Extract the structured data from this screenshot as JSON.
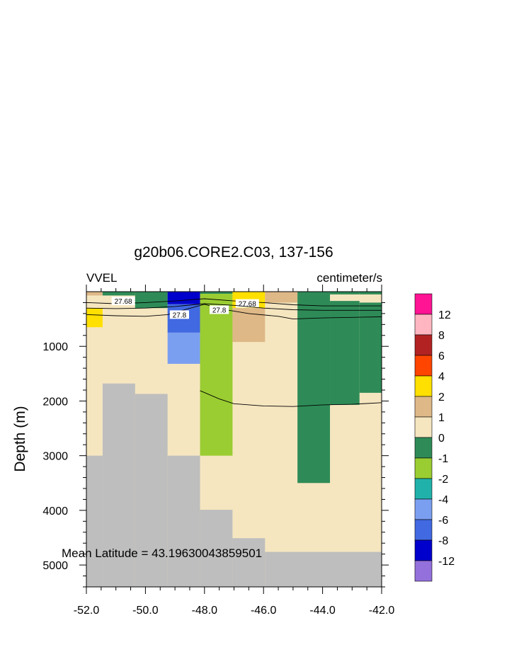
{
  "chart_data": {
    "type": "heatmap",
    "title": "g20b06.CORE2.C03, 137-156",
    "left_label": "VVEL",
    "right_label": "centimeter/s",
    "ylabel": "Depth (m)",
    "xlabel": "",
    "annotation": "Mean Latitude = 43.19630043859501",
    "xlim": [
      -52.0,
      -42.0
    ],
    "ylim": [
      5400,
      0
    ],
    "y_inverted": true,
    "x_ticks": [
      -52.0,
      -50.0,
      -48.0,
      -46.0,
      -44.0,
      -42.0
    ],
    "x_tick_labels": [
      "-52.0",
      "-50.0",
      "-48.0",
      "-46.0",
      "-44.0",
      "-42.0"
    ],
    "y_ticks": [
      1000,
      2000,
      3000,
      4000,
      5000
    ],
    "y_tick_labels": [
      "1000",
      "2000",
      "3000",
      "4000",
      "5000"
    ],
    "colorbar": {
      "labels": [
        "12",
        "8",
        "6",
        "4",
        "2",
        "1",
        "0",
        "-1",
        "-2",
        "-4",
        "-6",
        "-8",
        "-12"
      ],
      "colors": [
        "#ff1493",
        "#ffb6c1",
        "#b22222",
        "#ff4500",
        "#ffe000",
        "#deb887",
        "#f5e6c0",
        "#2e8b57",
        "#9acd32",
        "#20b2aa",
        "#7b9ff0",
        "#4169e1",
        "#0000cd",
        "#9370db"
      ]
    },
    "fill": {
      "ocean": "#f5e6c0",
      "land": "#bebebe"
    },
    "bathymetry": [
      {
        "x0": -52.0,
        "x1": -51.45,
        "depth": 3000
      },
      {
        "x0": -51.45,
        "x1": -50.35,
        "depth": 1680
      },
      {
        "x0": -50.35,
        "x1": -49.25,
        "depth": 1870
      },
      {
        "x0": -49.25,
        "x1": -48.15,
        "depth": 3000
      },
      {
        "x0": -48.15,
        "x1": -47.05,
        "depth": 3990
      },
      {
        "x0": -47.05,
        "x1": -45.95,
        "depth": 4510
      },
      {
        "x0": -45.95,
        "x1": -42.0,
        "depth": 4760
      }
    ],
    "cells": [
      {
        "x0": -52.0,
        "x1": -51.45,
        "d0": 0,
        "d1": 70,
        "value": 1
      },
      {
        "x0": -52.0,
        "x1": -51.45,
        "d0": 300,
        "d1": 650,
        "value": 2
      },
      {
        "x0": -51.45,
        "x1": -50.35,
        "d0": 0,
        "d1": 70,
        "value": -0.5
      },
      {
        "x0": -50.35,
        "x1": -49.25,
        "d0": 0,
        "d1": 300,
        "value": -0.5
      },
      {
        "x0": -49.25,
        "x1": -48.15,
        "d0": 0,
        "d1": 230,
        "value": -10
      },
      {
        "x0": -49.25,
        "x1": -48.15,
        "d0": 230,
        "d1": 750,
        "value": -7
      },
      {
        "x0": -49.25,
        "x1": -48.15,
        "d0": 750,
        "d1": 1320,
        "value": -5
      },
      {
        "x0": -48.15,
        "x1": -47.05,
        "d0": 0,
        "d1": 40,
        "value": -0.5
      },
      {
        "x0": -48.15,
        "x1": -47.05,
        "d0": 40,
        "d1": 3000,
        "value": -1.5
      },
      {
        "x0": -47.05,
        "x1": -45.95,
        "d0": 0,
        "d1": 300,
        "value": 3
      },
      {
        "x0": -47.05,
        "x1": -45.95,
        "d0": 300,
        "d1": 920,
        "value": 1.5
      },
      {
        "x0": -45.95,
        "x1": -44.85,
        "d0": 0,
        "d1": 200,
        "value": 1.5
      },
      {
        "x0": -44.85,
        "x1": -43.75,
        "d0": 0,
        "d1": 3500,
        "value": -0.5
      },
      {
        "x0": -43.75,
        "x1": -42.75,
        "d0": 0,
        "d1": 50,
        "value": -0.5
      },
      {
        "x0": -43.75,
        "x1": -42.75,
        "d0": 170,
        "d1": 2070,
        "value": -0.5
      },
      {
        "x0": -42.75,
        "x1": -42.0,
        "d0": 0,
        "d1": 50,
        "value": -0.5
      },
      {
        "x0": -42.75,
        "x1": -42.0,
        "d0": 200,
        "d1": 1850,
        "value": -0.5
      }
    ],
    "contours": [
      {
        "label": "27.68",
        "points": [
          [
            -52.0,
            200
          ],
          [
            -51.0,
            220
          ],
          [
            -50.0,
            200
          ],
          [
            -49.0,
            170
          ],
          [
            -48.0,
            130
          ],
          [
            -47.0,
            170
          ],
          [
            -46.0,
            200
          ],
          [
            -45.0,
            240
          ],
          [
            -44.0,
            260
          ],
          [
            -43.0,
            260
          ],
          [
            -42.0,
            260
          ]
        ],
        "label_positions": [
          [
            -50.75,
            170
          ],
          [
            -46.55,
            215
          ]
        ]
      },
      {
        "label": "",
        "points": [
          [
            -52.0,
            300
          ],
          [
            -51.0,
            310
          ],
          [
            -50.0,
            300
          ],
          [
            -49.0,
            270
          ],
          [
            -48.0,
            220
          ],
          [
            -47.0,
            250
          ],
          [
            -46.0,
            300
          ],
          [
            -45.0,
            330
          ],
          [
            -44.0,
            340
          ],
          [
            -43.0,
            340
          ],
          [
            -42.0,
            340
          ]
        ],
        "label_positions": []
      },
      {
        "label": "27.8",
        "points": [
          [
            -52.0,
            420
          ],
          [
            -51.0,
            440
          ],
          [
            -50.0,
            450
          ],
          [
            -49.25,
            420
          ],
          [
            -48.6,
            320
          ],
          [
            -48.0,
            230
          ],
          [
            -47.4,
            320
          ],
          [
            -46.5,
            400
          ],
          [
            -45.5,
            450
          ],
          [
            -45.0,
            500
          ],
          [
            -44.0,
            480
          ],
          [
            -43.0,
            470
          ],
          [
            -42.0,
            460
          ]
        ],
        "label_positions": [
          [
            -48.85,
            420
          ],
          [
            -47.5,
            330
          ]
        ]
      },
      {
        "label": "",
        "points": [
          [
            -48.15,
            1810
          ],
          [
            -47.5,
            1960
          ],
          [
            -47.0,
            2050
          ],
          [
            -46.0,
            2090
          ],
          [
            -45.0,
            2100
          ],
          [
            -44.0,
            2070
          ],
          [
            -43.0,
            2060
          ],
          [
            -42.0,
            2030
          ]
        ],
        "label_positions": []
      }
    ]
  }
}
